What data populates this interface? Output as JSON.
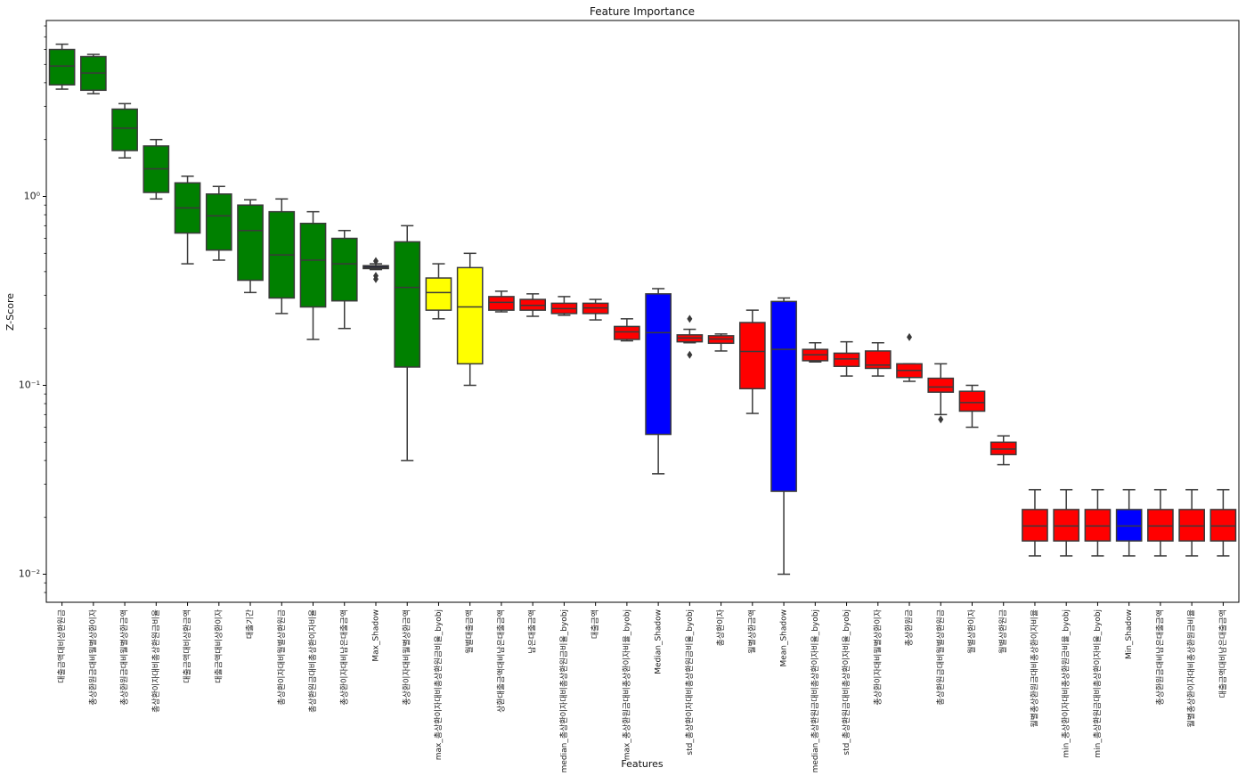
{
  "chart_data": {
    "type": "box",
    "title": "Feature Importance",
    "xlabel": "Features",
    "ylabel": "Z-Score",
    "yscale": "log",
    "ylim": [
      0.0072,
      8.5
    ],
    "yticks": [
      {
        "value": 1,
        "label": "10⁰"
      },
      {
        "value": 0.1,
        "label": "10⁻¹"
      },
      {
        "value": 0.01,
        "label": "10⁻²"
      }
    ],
    "colors": {
      "confirmed": "#008000",
      "tentative": "#ffff00",
      "rejected": "#ff0000",
      "shadow": "#0000ff",
      "max_shadow": "#1c1c3a"
    },
    "features": [
      {
        "name": "대출금액대비상환원금",
        "color": "confirmed",
        "wlo": 3.7,
        "q1": 3.9,
        "med": 4.9,
        "q3": 6.0,
        "whi": 6.4,
        "outliers": []
      },
      {
        "name": "총상환원금대비월별상환이자",
        "color": "confirmed",
        "wlo": 3.5,
        "q1": 3.65,
        "med": 4.5,
        "q3": 5.5,
        "whi": 5.65,
        "outliers": []
      },
      {
        "name": "총상환원금대비월별상환금액",
        "color": "confirmed",
        "wlo": 1.6,
        "q1": 1.75,
        "med": 2.3,
        "q3": 2.9,
        "whi": 3.1,
        "outliers": []
      },
      {
        "name": "총상환이자대비총상환원금비율",
        "color": "confirmed",
        "wlo": 0.97,
        "q1": 1.05,
        "med": 1.4,
        "q3": 1.85,
        "whi": 2.0,
        "outliers": []
      },
      {
        "name": "대출금액대비상환금액",
        "color": "confirmed",
        "wlo": 0.44,
        "q1": 0.64,
        "med": 0.87,
        "q3": 1.18,
        "whi": 1.28,
        "outliers": []
      },
      {
        "name": "대출금액대비상환이자",
        "color": "confirmed",
        "wlo": 0.46,
        "q1": 0.52,
        "med": 0.79,
        "q3": 1.03,
        "whi": 1.13,
        "outliers": []
      },
      {
        "name": "대출기간",
        "color": "confirmed",
        "wlo": 0.31,
        "q1": 0.36,
        "med": 0.66,
        "q3": 0.9,
        "whi": 0.96,
        "outliers": []
      },
      {
        "name": "총상환이자대비월별상환원금",
        "color": "confirmed",
        "wlo": 0.24,
        "q1": 0.29,
        "med": 0.49,
        "q3": 0.83,
        "whi": 0.97,
        "outliers": []
      },
      {
        "name": "총상환원금대비총상환이자비율",
        "color": "confirmed",
        "wlo": 0.175,
        "q1": 0.26,
        "med": 0.46,
        "q3": 0.72,
        "whi": 0.83,
        "outliers": []
      },
      {
        "name": "총상환이자대비남은대출금액",
        "color": "confirmed",
        "wlo": 0.2,
        "q1": 0.28,
        "med": 0.44,
        "q3": 0.6,
        "whi": 0.66,
        "outliers": []
      },
      {
        "name": "Max_Shadow",
        "color": "max_shadow",
        "wlo": 0.41,
        "q1": 0.415,
        "med": 0.42,
        "q3": 0.43,
        "whi": 0.44,
        "outliers": [
          0.455,
          0.38,
          0.365
        ]
      },
      {
        "name": "총상환이자대비월별상환금액",
        "color": "confirmed",
        "wlo": 0.04,
        "q1": 0.125,
        "med": 0.33,
        "q3": 0.575,
        "whi": 0.7,
        "outliers": []
      },
      {
        "name": "max_총상환이자대비총상환원금비율_byobj",
        "color": "tentative",
        "wlo": 0.225,
        "q1": 0.25,
        "med": 0.31,
        "q3": 0.37,
        "whi": 0.44,
        "outliers": []
      },
      {
        "name": "월별대출금액",
        "color": "tentative",
        "wlo": 0.1,
        "q1": 0.13,
        "med": 0.26,
        "q3": 0.42,
        "whi": 0.5,
        "outliers": []
      },
      {
        "name": "상환대출금액대비남은대출금액",
        "color": "rejected",
        "wlo": 0.245,
        "q1": 0.25,
        "med": 0.275,
        "q3": 0.295,
        "whi": 0.315,
        "outliers": []
      },
      {
        "name": "남은대출금액",
        "color": "rejected",
        "wlo": 0.232,
        "q1": 0.25,
        "med": 0.265,
        "q3": 0.285,
        "whi": 0.305,
        "outliers": []
      },
      {
        "name": "median_총상환이자대비총상환원금비율_byobj",
        "color": "rejected",
        "wlo": 0.235,
        "q1": 0.24,
        "med": 0.255,
        "q3": 0.272,
        "whi": 0.295,
        "outliers": []
      },
      {
        "name": "대출금액",
        "color": "rejected",
        "wlo": 0.222,
        "q1": 0.24,
        "med": 0.257,
        "q3": 0.272,
        "whi": 0.285,
        "outliers": []
      },
      {
        "name": "max_총상환원금대비총상환이자비율_byobj",
        "color": "rejected",
        "wlo": 0.172,
        "q1": 0.175,
        "med": 0.192,
        "q3": 0.205,
        "whi": 0.225,
        "outliers": []
      },
      {
        "name": "Median_Shadow",
        "color": "shadow",
        "wlo": 0.034,
        "q1": 0.055,
        "med": 0.19,
        "q3": 0.305,
        "whi": 0.325,
        "outliers": []
      },
      {
        "name": "std_총상환이자대비총상환원금비율_byobj",
        "color": "rejected",
        "wlo": 0.168,
        "q1": 0.17,
        "med": 0.178,
        "q3": 0.185,
        "whi": 0.198,
        "outliers": [
          0.225,
          0.145
        ]
      },
      {
        "name": "총상환이자",
        "color": "rejected",
        "wlo": 0.152,
        "q1": 0.167,
        "med": 0.176,
        "q3": 0.183,
        "whi": 0.187,
        "outliers": []
      },
      {
        "name": "월별상환금액",
        "color": "rejected",
        "wlo": 0.071,
        "q1": 0.096,
        "med": 0.151,
        "q3": 0.215,
        "whi": 0.25,
        "outliers": []
      },
      {
        "name": "Mean_Shadow",
        "color": "shadow",
        "wlo": 0.01,
        "q1": 0.0275,
        "med": 0.155,
        "q3": 0.278,
        "whi": 0.29,
        "outliers": []
      },
      {
        "name": "median_총상환원금대비총상환이자비율_byobj",
        "color": "rejected",
        "wlo": 0.133,
        "q1": 0.135,
        "med": 0.145,
        "q3": 0.155,
        "whi": 0.168,
        "outliers": []
      },
      {
        "name": "std_총상환원금대비총상환이자비율_byobj",
        "color": "rejected",
        "wlo": 0.112,
        "q1": 0.126,
        "med": 0.138,
        "q3": 0.148,
        "whi": 0.17,
        "outliers": []
      },
      {
        "name": "총상환이자대비월별상환이자",
        "color": "rejected",
        "wlo": 0.112,
        "q1": 0.123,
        "med": 0.128,
        "q3": 0.152,
        "whi": 0.168,
        "outliers": []
      },
      {
        "name": "총상환원금",
        "color": "rejected",
        "wlo": 0.105,
        "q1": 0.11,
        "med": 0.12,
        "q3": 0.13,
        "whi": 0.13,
        "outliers": [
          0.18
        ]
      },
      {
        "name": "총상환원금대비월별상환원금",
        "color": "rejected",
        "wlo": 0.07,
        "q1": 0.092,
        "med": 0.098,
        "q3": 0.109,
        "whi": 0.13,
        "outliers": [
          0.066
        ]
      },
      {
        "name": "월별상환이자",
        "color": "rejected",
        "wlo": 0.06,
        "q1": 0.073,
        "med": 0.081,
        "q3": 0.093,
        "whi": 0.1,
        "outliers": []
      },
      {
        "name": "월별상환원금",
        "color": "rejected",
        "wlo": 0.038,
        "q1": 0.043,
        "med": 0.046,
        "q3": 0.05,
        "whi": 0.054,
        "outliers": []
      },
      {
        "name": "월별총상환원금대비총상환이자비율",
        "color": "rejected",
        "wlo": 0.0125,
        "q1": 0.015,
        "med": 0.018,
        "q3": 0.022,
        "whi": 0.028,
        "outliers": []
      },
      {
        "name": "min_총상환이자대비총상환원금비율_byobj",
        "color": "rejected",
        "wlo": 0.0125,
        "q1": 0.015,
        "med": 0.018,
        "q3": 0.022,
        "whi": 0.028,
        "outliers": []
      },
      {
        "name": "min_총상환원금대비총상환이자비율_byobj",
        "color": "rejected",
        "wlo": 0.0125,
        "q1": 0.015,
        "med": 0.018,
        "q3": 0.022,
        "whi": 0.028,
        "outliers": []
      },
      {
        "name": "Min_Shadow",
        "color": "shadow",
        "wlo": 0.0125,
        "q1": 0.015,
        "med": 0.018,
        "q3": 0.022,
        "whi": 0.028,
        "outliers": []
      },
      {
        "name": "총상환원금대비남은대출금액",
        "color": "rejected",
        "wlo": 0.0125,
        "q1": 0.015,
        "med": 0.018,
        "q3": 0.022,
        "whi": 0.028,
        "outliers": []
      },
      {
        "name": "월별총상환이자대비총상환원금비율",
        "color": "rejected",
        "wlo": 0.0125,
        "q1": 0.015,
        "med": 0.018,
        "q3": 0.022,
        "whi": 0.028,
        "outliers": []
      },
      {
        "name": "대출금액대비남은대출금액",
        "color": "rejected",
        "wlo": 0.0125,
        "q1": 0.015,
        "med": 0.018,
        "q3": 0.022,
        "whi": 0.028,
        "outliers": []
      }
    ]
  }
}
